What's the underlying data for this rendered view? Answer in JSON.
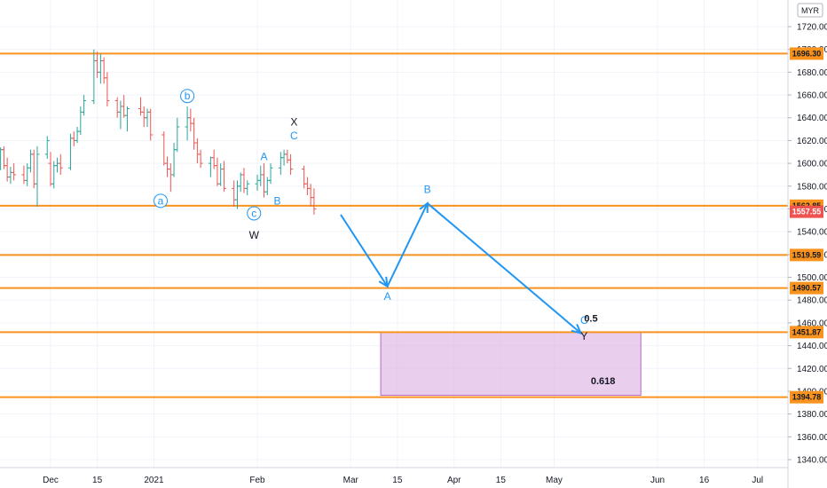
{
  "currency_badge": "MYR",
  "chart_data": {
    "type": "candlestick",
    "y_axis": {
      "ylim": [
        1333,
        1748
      ],
      "ticks": [
        1340,
        1360,
        1380,
        1400,
        1420,
        1440,
        1460,
        1480,
        1500,
        1520,
        1540,
        1560,
        1580,
        1600,
        1620,
        1640,
        1660,
        1680,
        1700,
        1720
      ],
      "tick_labels": [
        "1340.00",
        "1360.00",
        "1380.00",
        "1400.00",
        "1420.00",
        "1440.00",
        "1460.00",
        "1480.00",
        "1500.00",
        "1520.00",
        "1540.00",
        "1560.00",
        "1580.00",
        "1600.00",
        "1620.00",
        "1640.00",
        "1660.00",
        "1680.00",
        "1700.00",
        "1720.00"
      ]
    },
    "x_axis": {
      "ticks": [
        "2020-12-01",
        "2020-12-15",
        "2021-01-01",
        "2021-02-01",
        "2021-03-01",
        "2021-03-15",
        "2021-04-01",
        "2021-04-15",
        "2021-05-01",
        "2021-06-01",
        "2021-06-15",
        "2021-07-01"
      ],
      "tick_labels": [
        "Dec",
        "15",
        "2021",
        "Feb",
        "Mar",
        "15",
        "Apr",
        "15",
        "May",
        "Jun",
        "16",
        "Jul"
      ]
    },
    "colors": {
      "up": "#26a69a",
      "down": "#ef5350",
      "level": "#f7931e",
      "wave": "#2196f3",
      "zone_fill": "#e1bee7",
      "zone_border": "#ba68c8",
      "last_price": "#ef5350"
    },
    "horizontal_levels": [
      {
        "price": 1696.3,
        "label": "1696.30"
      },
      {
        "price": 1562.85,
        "label": "1562.85"
      },
      {
        "price": 1519.59,
        "label": "1519.59"
      },
      {
        "price": 1490.57,
        "label": "1490.57"
      },
      {
        "price": 1451.87,
        "label": "1451.87"
      },
      {
        "price": 1394.78,
        "label": "1394.78"
      }
    ],
    "last_price": {
      "price": 1557.55,
      "label": "1557.55"
    },
    "target_zone": {
      "x_start": "2021-03-10",
      "x_end": "2021-05-27",
      "y_top": 1451.87,
      "y_bottom": 1396.5
    },
    "fib_labels": [
      {
        "text": "0.5",
        "x": "2021-05-10",
        "price": 1461
      },
      {
        "text": "0.618",
        "x": "2021-05-12",
        "price": 1406
      }
    ],
    "projection_path": [
      {
        "date": "2021-02-26",
        "price": 1555
      },
      {
        "date": "2021-03-12",
        "price": 1492
      },
      {
        "date": "2021-03-24",
        "price": 1565
      },
      {
        "date": "2021-05-09",
        "price": 1451
      }
    ],
    "wave_labels": [
      {
        "text": "b",
        "date": "2021-01-11",
        "price": 1656,
        "circled": true,
        "color": "#2196f3"
      },
      {
        "text": "a",
        "date": "2021-01-03",
        "price": 1564,
        "circled": true,
        "color": "#2196f3"
      },
      {
        "text": "c",
        "date": "2021-01-31",
        "price": 1553,
        "circled": true,
        "color": "#2196f3"
      },
      {
        "text": "W",
        "date": "2021-01-31",
        "price": 1534,
        "circled": false,
        "color": "#131722"
      },
      {
        "text": "A",
        "date": "2021-02-03",
        "price": 1603,
        "circled": false,
        "color": "#2196f3"
      },
      {
        "text": "B",
        "date": "2021-02-07",
        "price": 1564,
        "circled": false,
        "color": "#2196f3"
      },
      {
        "text": "X",
        "date": "2021-02-12",
        "price": 1633,
        "circled": false,
        "color": "#131722"
      },
      {
        "text": "C",
        "date": "2021-02-12",
        "price": 1621,
        "circled": false,
        "color": "#2196f3"
      },
      {
        "text": "A",
        "date": "2021-03-12",
        "price": 1480,
        "circled": false,
        "color": "#2196f3"
      },
      {
        "text": "B",
        "date": "2021-03-24",
        "price": 1574,
        "circled": false,
        "color": "#2196f3"
      },
      {
        "text": "C",
        "date": "2021-05-10",
        "price": 1459,
        "circled": false,
        "color": "#2196f3"
      },
      {
        "text": "Y",
        "date": "2021-05-10",
        "price": 1445,
        "circled": false,
        "color": "#131722"
      }
    ],
    "ohlc": [
      [
        "2020-11-16",
        1605,
        1614,
        1594,
        1612
      ],
      [
        "2020-11-17",
        1612,
        1615,
        1595,
        1598
      ],
      [
        "2020-11-18",
        1598,
        1605,
        1584,
        1588
      ],
      [
        "2020-11-19",
        1588,
        1597,
        1582,
        1592
      ],
      [
        "2020-11-20",
        1592,
        1600,
        1585,
        1590
      ],
      [
        "2020-11-23",
        1590,
        1598,
        1582,
        1585
      ],
      [
        "2020-11-24",
        1585,
        1600,
        1580,
        1596
      ],
      [
        "2020-11-25",
        1596,
        1612,
        1592,
        1608
      ],
      [
        "2020-11-26",
        1608,
        1612,
        1578,
        1582
      ],
      [
        "2020-11-27",
        1582,
        1615,
        1562,
        1608
      ],
      [
        "2020-11-30",
        1608,
        1624,
        1604,
        1620
      ],
      [
        "2020-12-01",
        1600,
        1610,
        1580,
        1582
      ],
      [
        "2020-12-02",
        1582,
        1602,
        1578,
        1598
      ],
      [
        "2020-12-03",
        1598,
        1605,
        1592,
        1600
      ],
      [
        "2020-12-04",
        1600,
        1608,
        1590,
        1596
      ],
      [
        "2020-12-07",
        1596,
        1626,
        1594,
        1622
      ],
      [
        "2020-12-08",
        1622,
        1628,
        1615,
        1620
      ],
      [
        "2020-12-09",
        1620,
        1632,
        1618,
        1628
      ],
      [
        "2020-12-10",
        1628,
        1650,
        1625,
        1645
      ],
      [
        "2020-12-11",
        1645,
        1660,
        1642,
        1655
      ],
      [
        "2020-12-14",
        1655,
        1700,
        1652,
        1690
      ],
      [
        "2020-12-15",
        1690,
        1698,
        1675,
        1680
      ],
      [
        "2020-12-16",
        1680,
        1696,
        1670,
        1690
      ],
      [
        "2020-12-17",
        1690,
        1693,
        1670,
        1675
      ],
      [
        "2020-12-18",
        1675,
        1680,
        1650,
        1655
      ],
      [
        "2020-12-21",
        1655,
        1658,
        1640,
        1645
      ],
      [
        "2020-12-22",
        1645,
        1655,
        1630,
        1650
      ],
      [
        "2020-12-23",
        1650,
        1660,
        1640,
        1642
      ],
      [
        "2020-12-24",
        1642,
        1650,
        1628,
        1648
      ],
      [
        "2020-12-28",
        1648,
        1658,
        1642,
        1645
      ],
      [
        "2020-12-29",
        1645,
        1650,
        1632,
        1640
      ],
      [
        "2020-12-30",
        1640,
        1648,
        1632,
        1645
      ],
      [
        "2020-12-31",
        1645,
        1648,
        1620,
        1625
      ],
      [
        "2021-01-04",
        1625,
        1628,
        1598,
        1600
      ],
      [
        "2021-01-05",
        1600,
        1606,
        1588,
        1595
      ],
      [
        "2021-01-06",
        1595,
        1600,
        1575,
        1590
      ],
      [
        "2021-01-07",
        1590,
        1618,
        1588,
        1612
      ],
      [
        "2021-01-08",
        1612,
        1640,
        1610,
        1632
      ],
      [
        "2021-01-11",
        1632,
        1650,
        1620,
        1640
      ],
      [
        "2021-01-12",
        1640,
        1648,
        1628,
        1635
      ],
      [
        "2021-01-13",
        1635,
        1640,
        1612,
        1618
      ],
      [
        "2021-01-14",
        1618,
        1622,
        1600,
        1608
      ],
      [
        "2021-01-15",
        1608,
        1612,
        1596,
        1600
      ],
      [
        "2021-01-18",
        1600,
        1606,
        1588,
        1605
      ],
      [
        "2021-01-19",
        1605,
        1612,
        1595,
        1598
      ],
      [
        "2021-01-20",
        1598,
        1605,
        1580,
        1582
      ],
      [
        "2021-01-21",
        1582,
        1600,
        1580,
        1595
      ],
      [
        "2021-01-22",
        1595,
        1602,
        1575,
        1578
      ],
      [
        "2021-01-25",
        1578,
        1585,
        1562,
        1568
      ],
      [
        "2021-01-26",
        1568,
        1585,
        1560,
        1580
      ],
      [
        "2021-01-27",
        1580,
        1592,
        1575,
        1590
      ],
      [
        "2021-01-28",
        1590,
        1596,
        1574,
        1578
      ],
      [
        "2021-01-29",
        1578,
        1585,
        1572,
        1582
      ],
      [
        "2021-02-01",
        1582,
        1590,
        1576,
        1585
      ],
      [
        "2021-02-02",
        1585,
        1598,
        1580,
        1590
      ],
      [
        "2021-02-03",
        1590,
        1600,
        1570,
        1575
      ],
      [
        "2021-02-04",
        1575,
        1588,
        1572,
        1585
      ],
      [
        "2021-02-05",
        1585,
        1600,
        1582,
        1596
      ],
      [
        "2021-02-08",
        1596,
        1610,
        1590,
        1605
      ],
      [
        "2021-02-09",
        1605,
        1612,
        1598,
        1608
      ],
      [
        "2021-02-10",
        1608,
        1612,
        1600,
        1603
      ],
      [
        "2021-02-11",
        1603,
        1608,
        1590,
        1595
      ],
      [
        "2021-02-15",
        1595,
        1598,
        1578,
        1582
      ],
      [
        "2021-02-16",
        1582,
        1588,
        1572,
        1578
      ],
      [
        "2021-02-17",
        1578,
        1582,
        1562,
        1570
      ],
      [
        "2021-02-18",
        1570,
        1578,
        1555,
        1560
      ]
    ]
  }
}
